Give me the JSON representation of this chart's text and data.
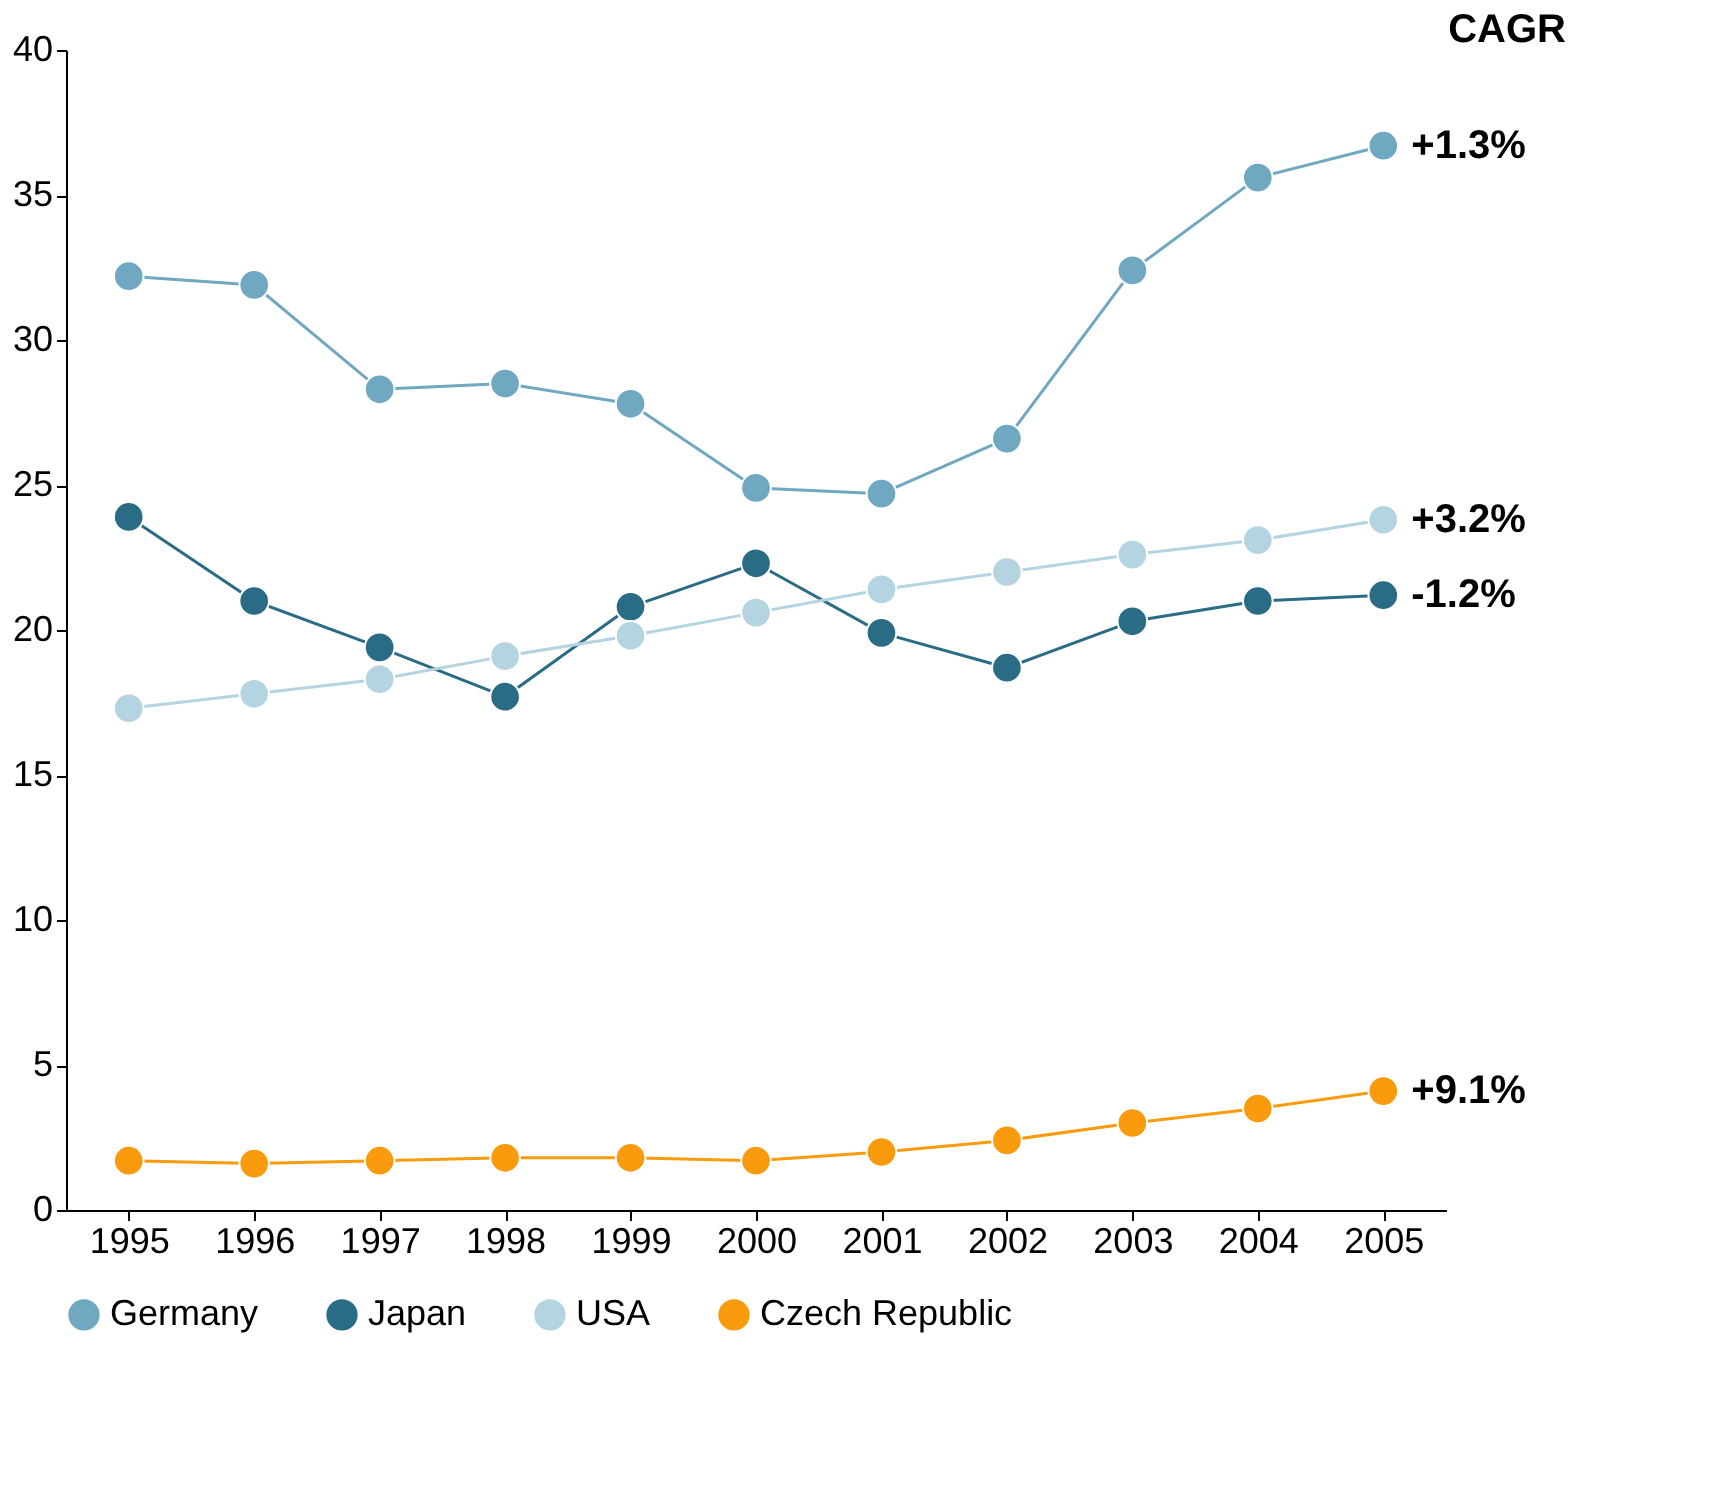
{
  "chart_data": {
    "type": "line",
    "categories": [
      "1995",
      "1996",
      "1997",
      "1998",
      "1999",
      "2000",
      "2001",
      "2002",
      "2003",
      "2004",
      "2005"
    ],
    "series": [
      {
        "name": "Germany",
        "color": "#6fa8c0",
        "values": [
          32.2,
          31.9,
          28.3,
          28.5,
          27.8,
          24.9,
          24.7,
          26.6,
          32.4,
          35.6,
          36.7
        ]
      },
      {
        "name": "Japan",
        "color": "#2a6c86",
        "values": [
          23.9,
          21.0,
          19.4,
          17.7,
          20.8,
          22.3,
          19.9,
          18.7,
          20.3,
          21.0,
          21.2
        ]
      },
      {
        "name": "USA",
        "color": "#b3d4e0",
        "values": [
          17.3,
          17.8,
          18.3,
          19.1,
          19.8,
          20.6,
          21.4,
          22.0,
          22.6,
          23.1,
          23.8
        ]
      },
      {
        "name": "Czech Republic",
        "color": "#f99b0c",
        "values": [
          1.7,
          1.6,
          1.7,
          1.8,
          1.8,
          1.7,
          2.0,
          2.4,
          3.0,
          3.5,
          4.1
        ]
      }
    ],
    "ylim": [
      0,
      40
    ],
    "yticks": [
      0,
      5,
      10,
      15,
      20,
      25,
      30,
      35,
      40
    ],
    "annotations": [
      "CAGR",
      {
        "text": "+1.3%",
        "x": "2005",
        "y": 36.7
      },
      {
        "text": "+3.2%",
        "x": "2005",
        "y": 23.8
      },
      {
        "text": "-1.2%",
        "x": "2005",
        "y": 21.2
      },
      {
        "text": "+9.1%",
        "x": "2005",
        "y": 4.1
      }
    ],
    "grid": false,
    "legend": "bottom",
    "marker": "circle",
    "line_style": "solid"
  }
}
